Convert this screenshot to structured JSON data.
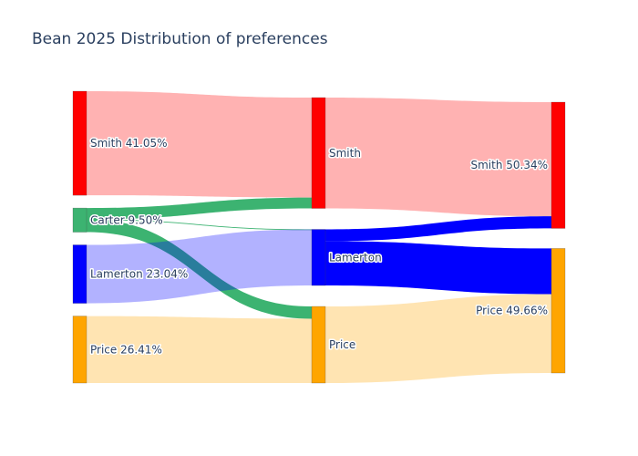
{
  "chart_data": {
    "type": "sankey",
    "title": "Bean 2025 Distribution of preferences",
    "stages": [
      {
        "id": "round1",
        "nodes": [
          {
            "id": "smith1",
            "label": "Smith 41.05%",
            "share": 41.05,
            "color": "#ff0000"
          },
          {
            "id": "carter1",
            "label": "Carter 9.50%",
            "share": 9.5,
            "color": "#3cb371"
          },
          {
            "id": "lamerton1",
            "label": "Lamerton 23.04%",
            "share": 23.04,
            "color": "#0000ff"
          },
          {
            "id": "price1",
            "label": "Price 26.41%",
            "share": 26.41,
            "color": "#ffa500"
          }
        ]
      },
      {
        "id": "round2",
        "nodes": [
          {
            "id": "smith2",
            "label": "Smith",
            "share": 45.51,
            "color": "#ff0000"
          },
          {
            "id": "lamerton2",
            "label": "Lamerton",
            "share": 23.04,
            "color": "#0000ff"
          },
          {
            "id": "price2",
            "label": "Price",
            "share": 31.45,
            "color": "#ffa500"
          }
        ]
      },
      {
        "id": "round3",
        "nodes": [
          {
            "id": "smith3",
            "label": "Smith 50.34%",
            "share": 50.34,
            "color": "#ff0000"
          },
          {
            "id": "price3",
            "label": "Price 49.66%",
            "share": 49.66,
            "color": "#ffa500"
          }
        ]
      }
    ],
    "links": [
      {
        "source": "smith1",
        "target": "smith2",
        "value": 41.05,
        "color": "rgba(255,0,0,0.3)"
      },
      {
        "source": "carter1",
        "target": "smith2",
        "value": 4.46,
        "color": "rgba(60,179,113,1)"
      },
      {
        "source": "carter1",
        "target": "lamerton2",
        "value": 0.0,
        "color": "rgba(60,179,113,1)"
      },
      {
        "source": "carter1",
        "target": "price2",
        "value": 5.04,
        "color": "rgba(60,179,113,1)"
      },
      {
        "source": "lamerton1",
        "target": "lamerton2",
        "value": 23.04,
        "color": "rgba(0,0,255,0.3)"
      },
      {
        "source": "price1",
        "target": "price2",
        "value": 26.41,
        "color": "rgba(255,165,0,0.3)"
      },
      {
        "source": "smith2",
        "target": "smith3",
        "value": 45.51,
        "color": "rgba(255,0,0,0.3)"
      },
      {
        "source": "lamerton2",
        "target": "smith3",
        "value": 4.83,
        "color": "rgba(0,0,255,1)"
      },
      {
        "source": "lamerton2",
        "target": "price3",
        "value": 18.21,
        "color": "rgba(0,0,255,1)"
      },
      {
        "source": "price2",
        "target": "price3",
        "value": 31.45,
        "color": "rgba(255,165,0,0.3)"
      }
    ]
  }
}
